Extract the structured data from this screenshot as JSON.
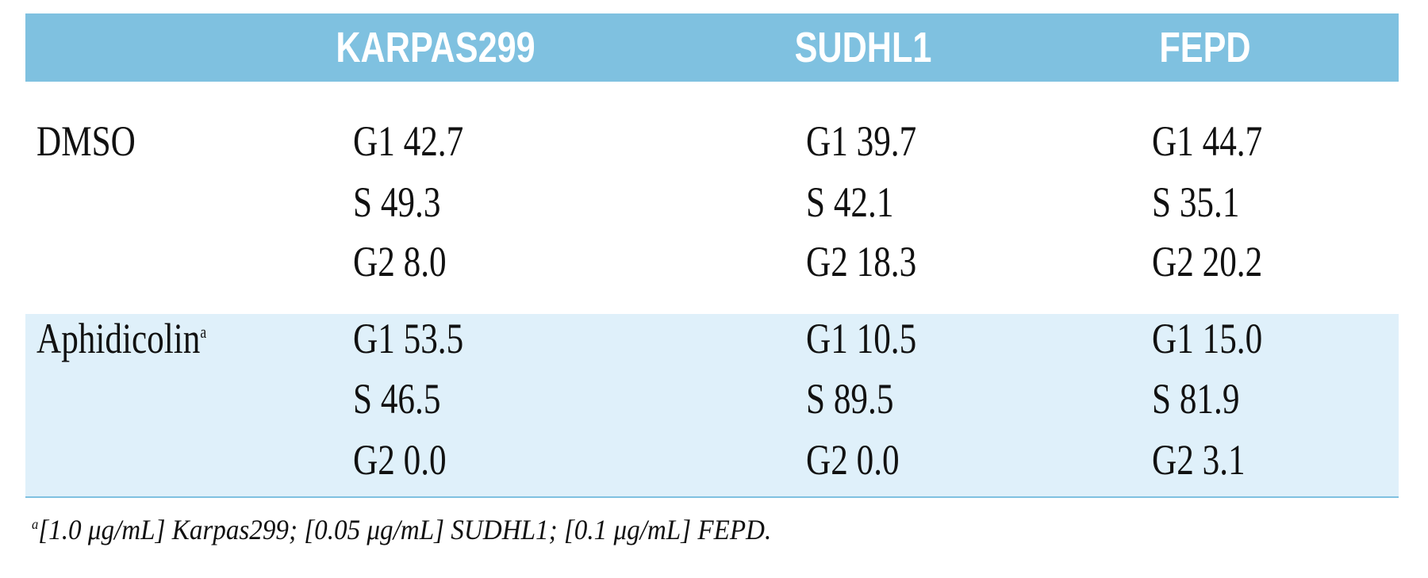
{
  "header": {
    "columns": [
      "KARPAS299",
      "SUDHL1",
      "FEPD"
    ]
  },
  "table": {
    "rows": [
      {
        "label": "DMSO",
        "cells": [
          [
            "G1 42.7",
            "S 49.3",
            "G2 8.0"
          ],
          [
            "G1 39.7",
            "S 42.1",
            "G2 18.3"
          ],
          [
            "G1 44.7",
            "S 35.1",
            "G2 20.2"
          ]
        ]
      },
      {
        "label": "Aphidicolin",
        "note": "a",
        "cells": [
          [
            "G1 53.5",
            "S 46.5",
            "G2 0.0"
          ],
          [
            "G1 10.5",
            "S 89.5",
            "G2 0.0"
          ],
          [
            "G1 15.0",
            "S 81.9",
            "G2 3.1"
          ]
        ]
      }
    ]
  },
  "footnote": {
    "marker": "a",
    "text": "[1.0 μg/mL] Karpas299; [0.05 μg/mL] SUDHL1; [0.1 μg/mL] FEPD."
  }
}
